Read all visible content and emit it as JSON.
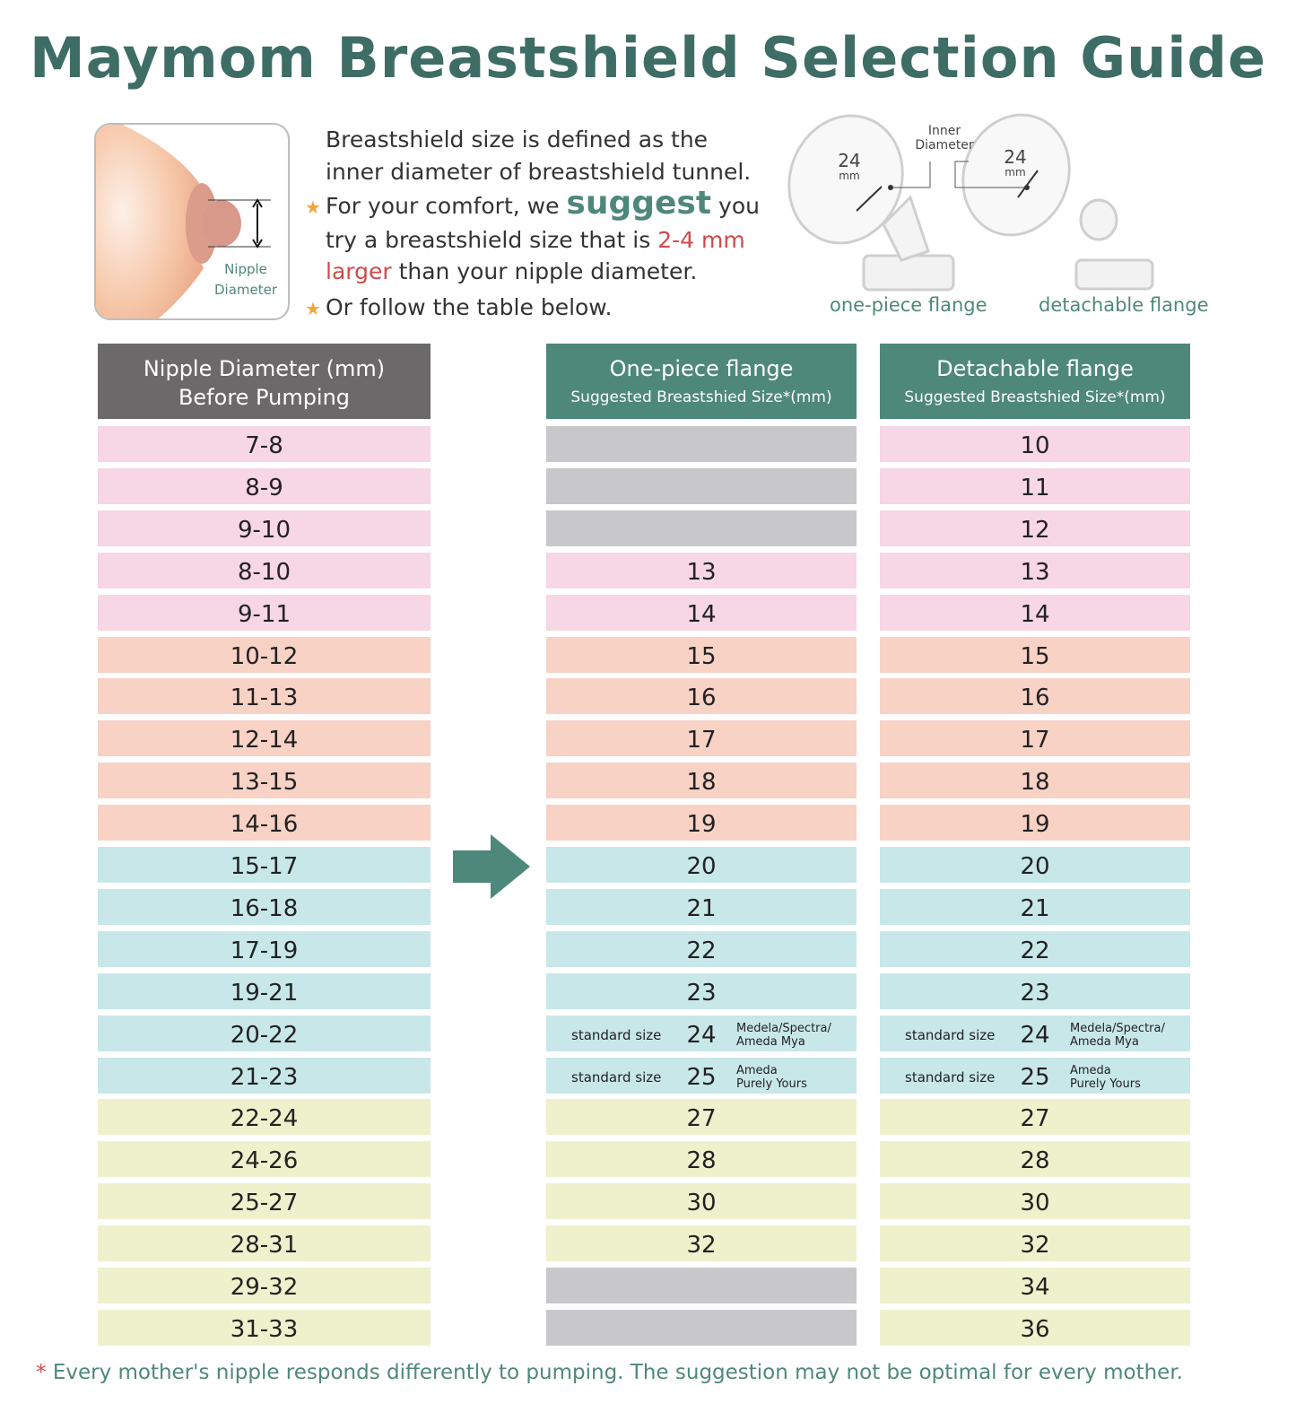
{
  "title": "Maymom Breastshield Selection Guide",
  "illustration": {
    "nipple_label_1": "Nipple",
    "nipple_label_2": "Diameter",
    "inner_label_1": "Inner",
    "inner_label_2": "Diameter",
    "size_value": "24",
    "size_unit": "mm",
    "one_piece_label": "one-piece flange",
    "detachable_label": "detachable flange"
  },
  "intro": {
    "line1": "Breastshield size is defined as the",
    "line2": "inner diameter of breastshield tunnel.",
    "line3_a": "For your comfort, we ",
    "line3_b": "suggest",
    "line3_c": " you",
    "line4_a": "try a breastshield size that is ",
    "line4_b": "2-4 mm",
    "line5_a": "larger",
    "line5_b": " than your nipple diameter.",
    "line6": "Or follow the table below.",
    "star_icon": "star-icon"
  },
  "headers": {
    "nipple": {
      "l1": "Nipple Diameter (mm)",
      "l2": "Before Pumping"
    },
    "one_piece": {
      "l1": "One-piece flange",
      "l2": "Suggested Breastshied Size*(mm)"
    },
    "detachable": {
      "l1": "Detachable flange",
      "l2": "Suggested Breastshied Size*(mm)"
    }
  },
  "colors": {
    "title": "#3e6d66",
    "header_grey": "#6b6969",
    "header_teal": "#4e887b",
    "pink": "#f7d6e5",
    "peach": "#f7d2c5",
    "blue": "#c8e7e9",
    "yellow": "#eef1cc",
    "na": "#c8c8ca"
  },
  "rows": [
    {
      "nipple": "7-8",
      "one": "",
      "det": "10",
      "c": "pink"
    },
    {
      "nipple": "8-9",
      "one": "",
      "det": "11",
      "c": "pink"
    },
    {
      "nipple": "9-10",
      "one": "",
      "det": "12",
      "c": "pink"
    },
    {
      "nipple": "8-10",
      "one": "13",
      "det": "13",
      "c": "pink"
    },
    {
      "nipple": "9-11",
      "one": "14",
      "det": "14",
      "c": "pink"
    },
    {
      "nipple": "10-12",
      "one": "15",
      "det": "15",
      "c": "peach"
    },
    {
      "nipple": "11-13",
      "one": "16",
      "det": "16",
      "c": "peach"
    },
    {
      "nipple": "12-14",
      "one": "17",
      "det": "17",
      "c": "peach"
    },
    {
      "nipple": "13-15",
      "one": "18",
      "det": "18",
      "c": "peach"
    },
    {
      "nipple": "14-16",
      "one": "19",
      "det": "19",
      "c": "peach"
    },
    {
      "nipple": "15-17",
      "one": "20",
      "det": "20",
      "c": "blue"
    },
    {
      "nipple": "16-18",
      "one": "21",
      "det": "21",
      "c": "blue"
    },
    {
      "nipple": "17-19",
      "one": "22",
      "det": "22",
      "c": "blue"
    },
    {
      "nipple": "19-21",
      "one": "23",
      "det": "23",
      "c": "blue"
    },
    {
      "nipple": "20-22",
      "one": "24",
      "det": "24",
      "c": "blue",
      "std": "standard size",
      "brand1": "Medela/Spectra/",
      "brand2": "Ameda Mya"
    },
    {
      "nipple": "21-23",
      "one": "25",
      "det": "25",
      "c": "blue",
      "std": "standard size",
      "brand1": "Ameda",
      "brand2": "Purely Yours"
    },
    {
      "nipple": "22-24",
      "one": "27",
      "det": "27",
      "c": "yellow"
    },
    {
      "nipple": "24-26",
      "one": "28",
      "det": "28",
      "c": "yellow"
    },
    {
      "nipple": "25-27",
      "one": "30",
      "det": "30",
      "c": "yellow"
    },
    {
      "nipple": "28-31",
      "one": "32",
      "det": "32",
      "c": "yellow"
    },
    {
      "nipple": "29-32",
      "one": "",
      "det": "34",
      "c": "yellow"
    },
    {
      "nipple": "31-33",
      "one": "",
      "det": "36",
      "c": "yellow"
    }
  ],
  "footnote": {
    "asterisk": "*",
    "text": "Every mother's nipple responds differently to pumping. The suggestion may not be optimal for every mother."
  }
}
